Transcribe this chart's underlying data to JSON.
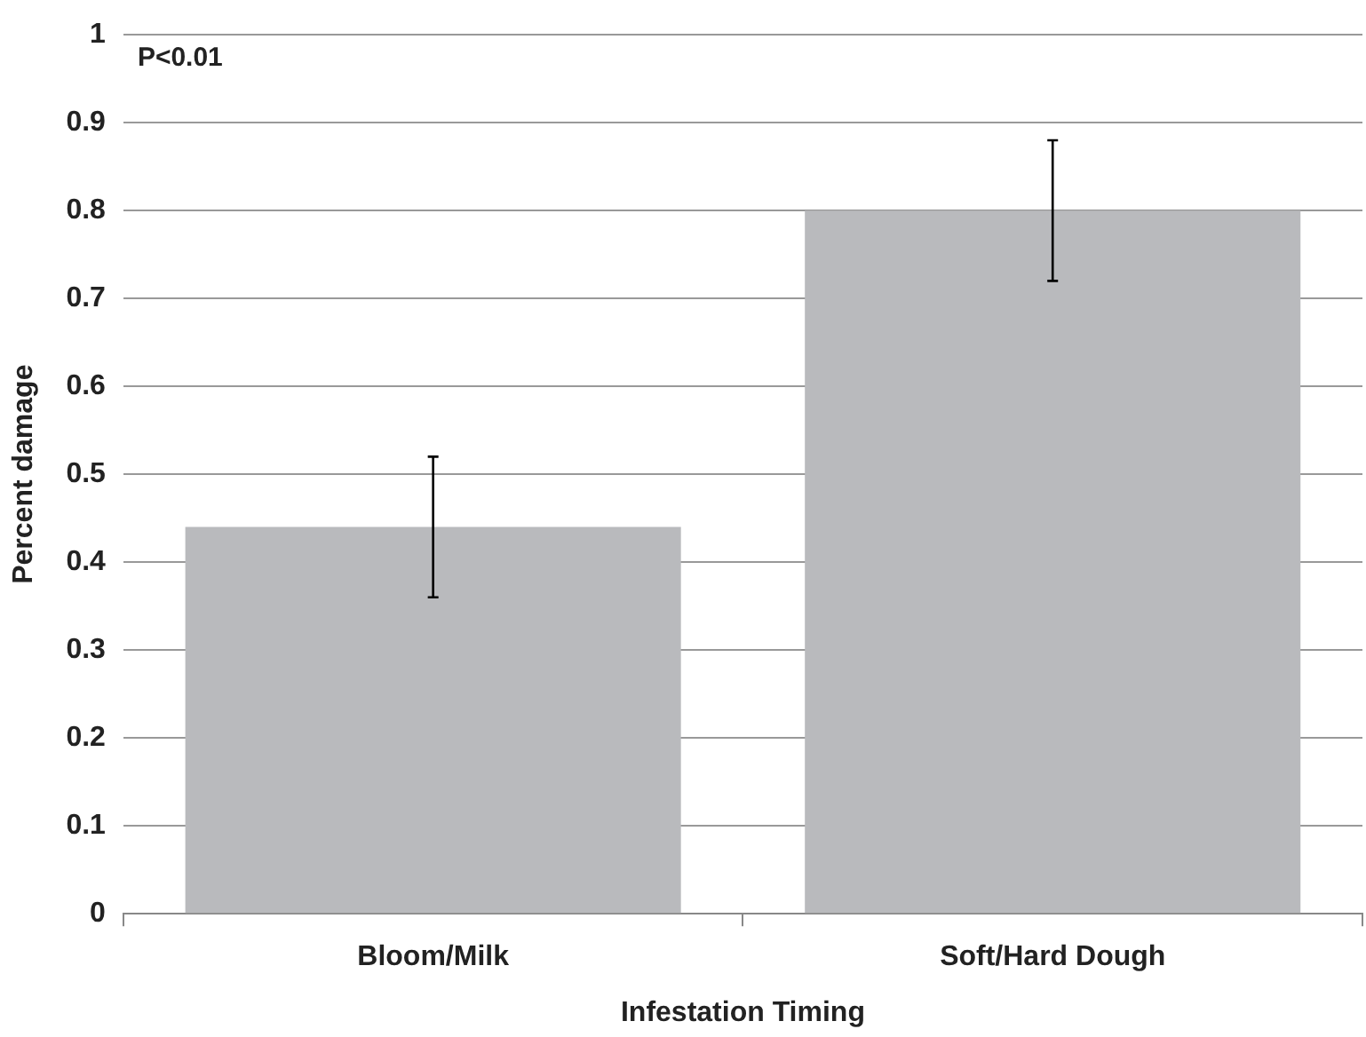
{
  "chart_data": {
    "type": "bar",
    "xlabel": "Infestation Timing",
    "ylabel": "Percent damage",
    "categories": [
      "Bloom/Milk",
      "Soft/Hard Dough"
    ],
    "values": [
      0.44,
      0.8
    ],
    "color": "#b9babd",
    "errors": [
      0.08,
      0.08
    ],
    "ylim": [
      0,
      1
    ],
    "yticks": [
      0,
      0.1,
      0.2,
      0.3,
      0.4,
      0.5,
      0.6,
      0.7,
      0.8,
      0.9,
      1
    ],
    "grid": "y",
    "annotations": [
      "P<0.01"
    ]
  }
}
